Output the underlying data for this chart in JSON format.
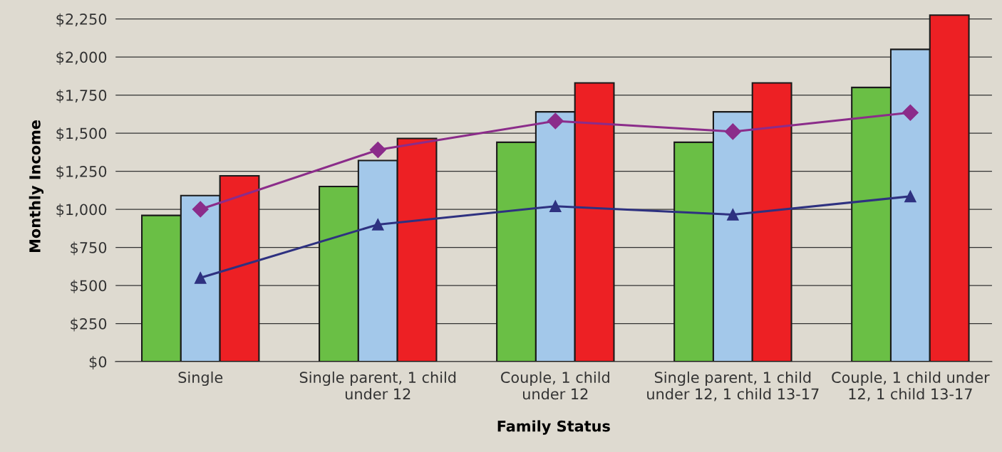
{
  "chart_data": {
    "type": "bar",
    "xlabel": "Family Status",
    "ylabel": "Monthly Income",
    "categories": [
      "Single",
      "Single parent, 1 child\nunder 12",
      "Couple, 1 child\nunder 12",
      "Single parent, 1 child\nunder 12, 1 child 13-17",
      "Couple, 1 child under\n12, 1 child 13-17"
    ],
    "series": [
      {
        "color": "#6abf45",
        "values": [
          960,
          1150,
          1440,
          1440,
          1800
        ]
      },
      {
        "color": "#a3c8ea",
        "values": [
          1090,
          1320,
          1640,
          1640,
          2050
        ]
      },
      {
        "color": "#ed2024",
        "values": [
          1220,
          1465,
          1830,
          1830,
          2275
        ]
      },
      {
        "type": "line",
        "color": "#8b2c8a",
        "marker": "diamond",
        "values": [
          1000,
          1390,
          1580,
          1510,
          1635
        ]
      },
      {
        "type": "line",
        "color": "#2e3180",
        "marker": "triangle",
        "values": [
          550,
          900,
          1020,
          965,
          1085
        ]
      }
    ],
    "ylim": [
      0,
      2300
    ],
    "yticks": [
      {
        "value": 0,
        "label": "$0"
      },
      {
        "value": 250,
        "label": "$250"
      },
      {
        "value": 500,
        "label": "$500"
      },
      {
        "value": 750,
        "label": "$750"
      },
      {
        "value": 1000,
        "label": "$1,000"
      },
      {
        "value": 1250,
        "label": "$1,250"
      },
      {
        "value": 1500,
        "label": "$1,500"
      },
      {
        "value": 1750,
        "label": "$1,750"
      },
      {
        "value": 2000,
        "label": "$2,000"
      },
      {
        "value": 2250,
        "label": "$2,250"
      }
    ],
    "grid": "y"
  }
}
